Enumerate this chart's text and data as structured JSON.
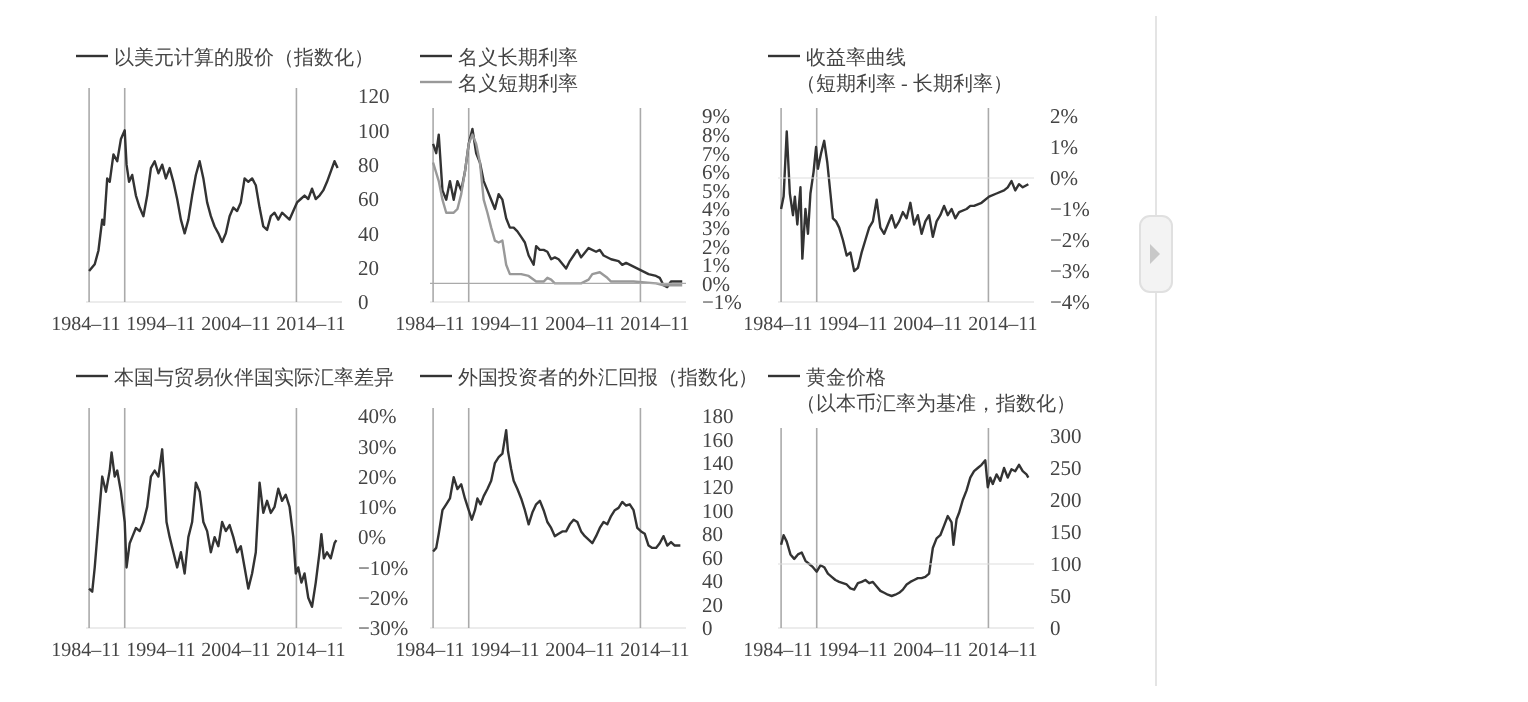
{
  "chart_data": [
    {
      "type": "line",
      "legend": "top",
      "xlim": [
        "1984-11",
        "2019-01"
      ],
      "xticks": [
        {
          "value": "1984-11",
          "label": "1984–11"
        },
        {
          "value": "1994-11",
          "label": "1994–11"
        },
        {
          "value": "2004-11",
          "label": "2004–11"
        },
        {
          "value": "2014-11",
          "label": "2014–11"
        }
      ],
      "ylim": [
        0,
        120
      ],
      "yticks": [
        0,
        20,
        40,
        60,
        80,
        100,
        120
      ],
      "ref_lines": [
        {
          "axis": "x",
          "value": "1985-04",
          "color": "#aaaaaa"
        },
        {
          "axis": "x",
          "value": "1990-01",
          "color": "#aaaaaa"
        },
        {
          "axis": "x",
          "value": "2012-12",
          "color": "#aaaaaa"
        }
      ],
      "series": [
        {
          "name": "以美元计算的股价（指数化）",
          "color": "#333333",
          "x": [
            "1985-04",
            "1986-01",
            "1986-07",
            "1987-01",
            "1987-04",
            "1987-09",
            "1988-01",
            "1988-07",
            "1989-01",
            "1989-07",
            "1990-01",
            "1990-04",
            "1990-08",
            "1991-01",
            "1991-07",
            "1992-01",
            "1992-07",
            "1993-01",
            "1993-07",
            "1994-01",
            "1994-07",
            "1995-01",
            "1995-07",
            "1996-01",
            "1996-07",
            "1997-01",
            "1997-07",
            "1998-01",
            "1998-07",
            "1999-01",
            "1999-07",
            "2000-01",
            "2000-07",
            "2001-01",
            "2001-07",
            "2002-01",
            "2002-07",
            "2003-01",
            "2003-07",
            "2004-01",
            "2004-07",
            "2005-01",
            "2005-07",
            "2006-01",
            "2006-07",
            "2007-01",
            "2007-07",
            "2008-01",
            "2008-07",
            "2009-01",
            "2009-07",
            "2010-01",
            "2010-07",
            "2011-01",
            "2011-07",
            "2012-01",
            "2012-07",
            "2013-01",
            "2013-07",
            "2014-01",
            "2014-07",
            "2015-01",
            "2015-07",
            "2016-01",
            "2016-07",
            "2017-01",
            "2017-07",
            "2018-01",
            "2018-06"
          ],
          "values": [
            18,
            22,
            30,
            48,
            45,
            72,
            70,
            86,
            82,
            95,
            100,
            80,
            70,
            74,
            62,
            55,
            50,
            62,
            78,
            82,
            75,
            80,
            72,
            78,
            70,
            60,
            48,
            40,
            48,
            62,
            74,
            82,
            72,
            58,
            50,
            44,
            40,
            35,
            40,
            50,
            55,
            53,
            58,
            72,
            70,
            72,
            68,
            55,
            44,
            42,
            50,
            52,
            48,
            52,
            50,
            48,
            53,
            58,
            60,
            62,
            60,
            66,
            60,
            62,
            65,
            70,
            76,
            82,
            78
          ]
        }
      ]
    },
    {
      "type": "line",
      "legend": "top",
      "xlim": [
        "1984-11",
        "2019-01"
      ],
      "xticks": [
        {
          "value": "1984-11",
          "label": "1984–11"
        },
        {
          "value": "1994-11",
          "label": "1994–11"
        },
        {
          "value": "2004-11",
          "label": "2004–11"
        },
        {
          "value": "2014-11",
          "label": "2014–11"
        }
      ],
      "ylim": [
        -1,
        9
      ],
      "yticks": [
        {
          "value": -1,
          "label": "−1%"
        },
        {
          "value": 0,
          "label": "0%"
        },
        {
          "value": 1,
          "label": "1%"
        },
        {
          "value": 2,
          "label": "2%"
        },
        {
          "value": 3,
          "label": "3%"
        },
        {
          "value": 4,
          "label": "4%"
        },
        {
          "value": 5,
          "label": "5%"
        },
        {
          "value": 6,
          "label": "6%"
        },
        {
          "value": 7,
          "label": "7%"
        },
        {
          "value": 8,
          "label": "8%"
        },
        {
          "value": 9,
          "label": "9%"
        }
      ],
      "ref_lines": [
        {
          "axis": "x",
          "value": "1985-04",
          "color": "#aaaaaa"
        },
        {
          "axis": "x",
          "value": "1990-01",
          "color": "#aaaaaa"
        },
        {
          "axis": "x",
          "value": "2012-12",
          "color": "#aaaaaa"
        },
        {
          "axis": "y",
          "value": 0,
          "color": "#aaaaaa"
        }
      ],
      "series": [
        {
          "name": "名义长期利率",
          "color": "#333333",
          "x": [
            "1985-04",
            "1985-09",
            "1986-01",
            "1986-07",
            "1987-01",
            "1987-07",
            "1988-01",
            "1988-07",
            "1989-01",
            "1989-07",
            "1990-01",
            "1990-07",
            "1991-01",
            "1991-07",
            "1992-01",
            "1992-07",
            "1993-01",
            "1993-07",
            "1994-01",
            "1994-07",
            "1995-01",
            "1995-07",
            "1996-01",
            "1996-07",
            "1997-01",
            "1997-07",
            "1998-01",
            "1998-09",
            "1999-01",
            "1999-07",
            "2000-01",
            "2000-07",
            "2001-01",
            "2001-07",
            "2002-01",
            "2003-01",
            "2003-07",
            "2004-01",
            "2004-07",
            "2005-01",
            "2006-01",
            "2007-01",
            "2007-07",
            "2008-01",
            "2009-01",
            "2010-01",
            "2010-07",
            "2011-01",
            "2012-01",
            "2013-01",
            "2014-01",
            "2015-01",
            "2015-07",
            "2016-01",
            "2016-07",
            "2017-01",
            "2018-01",
            "2018-07"
          ],
          "values": [
            7.5,
            7.0,
            8.0,
            5.0,
            4.5,
            5.5,
            4.5,
            5.5,
            5.0,
            6.0,
            7.5,
            8.3,
            7.0,
            6.5,
            5.5,
            5.0,
            4.5,
            4.0,
            4.8,
            4.5,
            3.5,
            3.0,
            3.0,
            2.8,
            2.5,
            2.2,
            1.5,
            1.0,
            2.0,
            1.8,
            1.8,
            1.7,
            1.3,
            1.4,
            1.3,
            0.8,
            1.2,
            1.5,
            1.8,
            1.4,
            1.9,
            1.7,
            1.8,
            1.5,
            1.3,
            1.2,
            1.0,
            1.1,
            0.9,
            0.7,
            0.5,
            0.4,
            0.3,
            -0.1,
            -0.2,
            0.1,
            0.1,
            0.1
          ]
        },
        {
          "name": "名义短期利率",
          "color": "#999999",
          "x": [
            "1985-04",
            "1986-01",
            "1986-07",
            "1987-01",
            "1988-01",
            "1988-07",
            "1989-01",
            "1989-07",
            "1990-01",
            "1990-07",
            "1991-01",
            "1991-07",
            "1992-01",
            "1992-07",
            "1993-01",
            "1993-07",
            "1994-01",
            "1994-07",
            "1995-01",
            "1995-07",
            "1996-01",
            "1997-01",
            "1998-01",
            "1999-01",
            "2000-01",
            "2000-07",
            "2001-01",
            "2001-07",
            "2005-01",
            "2006-01",
            "2006-07",
            "2007-07",
            "2008-07",
            "2009-01",
            "2012-01",
            "2015-01",
            "2016-01",
            "2018-07"
          ],
          "values": [
            6.5,
            5.5,
            4.5,
            3.8,
            3.8,
            4.0,
            4.8,
            6.0,
            7.5,
            8.0,
            7.5,
            6.5,
            4.5,
            3.8,
            3.0,
            2.3,
            2.2,
            2.3,
            1.0,
            0.5,
            0.5,
            0.5,
            0.4,
            0.1,
            0.1,
            0.3,
            0.2,
            0,
            0,
            0.2,
            0.5,
            0.6,
            0.3,
            0.1,
            0.1,
            0,
            -0.1,
            -0.1
          ]
        }
      ]
    },
    {
      "type": "line",
      "legend": "top",
      "xlim": [
        "1984-11",
        "2019-01"
      ],
      "xticks": [
        {
          "value": "1984-11",
          "label": "1984–11"
        },
        {
          "value": "1994-11",
          "label": "1994–11"
        },
        {
          "value": "2004-11",
          "label": "2004–11"
        },
        {
          "value": "2014-11",
          "label": "2014–11"
        }
      ],
      "ylim": [
        -4,
        2
      ],
      "yticks": [
        {
          "value": -4,
          "label": "−4%"
        },
        {
          "value": -3,
          "label": "−3%"
        },
        {
          "value": -2,
          "label": "−2%"
        },
        {
          "value": -1,
          "label": "−1%"
        },
        {
          "value": 0,
          "label": "0%"
        },
        {
          "value": 1,
          "label": "1%"
        },
        {
          "value": 2,
          "label": "2%"
        }
      ],
      "ref_lines": [
        {
          "axis": "x",
          "value": "1985-04",
          "color": "#aaaaaa"
        },
        {
          "axis": "x",
          "value": "1990-01",
          "color": "#aaaaaa"
        },
        {
          "axis": "x",
          "value": "2012-12",
          "color": "#aaaaaa"
        },
        {
          "axis": "y",
          "value": 0,
          "color": "#dddddd"
        }
      ],
      "series": [
        {
          "name": "收益率曲线（短期利率 - 长期利率）",
          "color": "#333333",
          "x": [
            "1985-04",
            "1985-08",
            "1986-01",
            "1986-06",
            "1986-11",
            "1987-02",
            "1987-06",
            "1987-11",
            "1988-02",
            "1988-07",
            "1988-11",
            "1989-03",
            "1989-08",
            "1989-12",
            "1990-03",
            "1990-08",
            "1991-01",
            "1991-06",
            "1991-11",
            "1992-03",
            "1992-08",
            "1993-01",
            "1993-07",
            "1994-01",
            "1994-07",
            "1995-01",
            "1995-07",
            "1996-01",
            "1996-07",
            "1997-01",
            "1997-07",
            "1998-01",
            "1998-07",
            "1999-01",
            "1999-07",
            "2000-01",
            "2000-07",
            "2001-01",
            "2001-07",
            "2002-01",
            "2002-07",
            "2003-01",
            "2003-07",
            "2004-01",
            "2004-07",
            "2005-01",
            "2005-07",
            "2006-01",
            "2006-07",
            "2007-01",
            "2007-07",
            "2008-01",
            "2008-07",
            "2009-01",
            "2010-01",
            "2010-07",
            "2011-01",
            "2012-01",
            "2013-01",
            "2014-01",
            "2015-01",
            "2015-07",
            "2016-01",
            "2016-07",
            "2017-01",
            "2017-07",
            "2018-04"
          ],
          "values": [
            -1.0,
            -0.6,
            1.5,
            -0.5,
            -1.2,
            -0.6,
            -1.5,
            -0.3,
            -2.6,
            -1.0,
            -1.8,
            -0.5,
            0.2,
            1.0,
            0.3,
            0.8,
            1.2,
            0.5,
            -0.5,
            -1.3,
            -1.4,
            -1.6,
            -2.0,
            -2.5,
            -2.4,
            -3.0,
            -2.9,
            -2.4,
            -2.0,
            -1.6,
            -1.4,
            -0.7,
            -1.6,
            -1.8,
            -1.5,
            -1.2,
            -1.6,
            -1.4,
            -1.1,
            -1.3,
            -0.8,
            -1.5,
            -1.2,
            -1.8,
            -1.4,
            -1.2,
            -1.9,
            -1.4,
            -1.2,
            -0.9,
            -1.2,
            -1.0,
            -1.3,
            -1.1,
            -1.0,
            -0.9,
            -0.9,
            -0.8,
            -0.6,
            -0.5,
            -0.4,
            -0.3,
            -0.1,
            -0.4,
            -0.2,
            -0.3,
            -0.2
          ]
        }
      ]
    },
    {
      "type": "line",
      "legend": "top",
      "xlim": [
        "1984-11",
        "2019-01"
      ],
      "xticks": [
        {
          "value": "1984-11",
          "label": "1984–11"
        },
        {
          "value": "1994-11",
          "label": "1994–11"
        },
        {
          "value": "2004-11",
          "label": "2004–11"
        },
        {
          "value": "2014-11",
          "label": "2014–11"
        }
      ],
      "ylim": [
        -30,
        40
      ],
      "yticks": [
        {
          "value": -30,
          "label": "−30%"
        },
        {
          "value": -20,
          "label": "−20%"
        },
        {
          "value": -10,
          "label": "−10%"
        },
        {
          "value": 0,
          "label": "0%"
        },
        {
          "value": 10,
          "label": "10%"
        },
        {
          "value": 20,
          "label": "20%"
        },
        {
          "value": 30,
          "label": "30%"
        },
        {
          "value": 40,
          "label": "40%"
        }
      ],
      "ref_lines": [
        {
          "axis": "x",
          "value": "1985-04",
          "color": "#aaaaaa"
        },
        {
          "axis": "x",
          "value": "1990-01",
          "color": "#aaaaaa"
        },
        {
          "axis": "x",
          "value": "2012-12",
          "color": "#aaaaaa"
        }
      ],
      "series": [
        {
          "name": "本国与贸易伙伴国实际汇率差异",
          "color": "#333333",
          "x": [
            "1985-04",
            "1985-09",
            "1986-01",
            "1986-07",
            "1987-01",
            "1987-07",
            "1988-01",
            "1988-04",
            "1988-09",
            "1989-01",
            "1989-07",
            "1990-01",
            "1990-04",
            "1990-09",
            "1991-01",
            "1991-07",
            "1992-01",
            "1992-07",
            "1993-01",
            "1993-07",
            "1994-01",
            "1994-07",
            "1995-01",
            "1995-04",
            "1995-08",
            "1996-01",
            "1996-07",
            "1997-01",
            "1997-07",
            "1998-01",
            "1998-07",
            "1999-01",
            "1999-07",
            "2000-01",
            "2000-07",
            "2001-01",
            "2001-07",
            "2002-01",
            "2002-07",
            "2003-01",
            "2003-07",
            "2004-01",
            "2004-07",
            "2005-01",
            "2005-07",
            "2006-01",
            "2006-07",
            "2007-01",
            "2007-07",
            "2008-01",
            "2008-07",
            "2009-01",
            "2009-07",
            "2010-01",
            "2010-07",
            "2011-01",
            "2011-07",
            "2012-01",
            "2012-07",
            "2012-11",
            "2013-03",
            "2013-08",
            "2014-01",
            "2014-07",
            "2015-01",
            "2015-07",
            "2016-01",
            "2016-04",
            "2016-08",
            "2017-01",
            "2017-07",
            "2018-01",
            "2018-04"
          ],
          "values": [
            -17,
            -18,
            -10,
            5,
            20,
            15,
            22,
            28,
            20,
            22,
            15,
            5,
            -10,
            -2,
            0,
            3,
            2,
            5,
            10,
            20,
            22,
            20,
            29,
            20,
            5,
            0,
            -5,
            -10,
            -5,
            -12,
            0,
            5,
            18,
            15,
            5,
            2,
            -5,
            0,
            -3,
            5,
            2,
            4,
            0,
            -5,
            -3,
            -10,
            -17,
            -12,
            -5,
            18,
            8,
            12,
            8,
            10,
            16,
            12,
            14,
            10,
            0,
            -12,
            -10,
            -15,
            -12,
            -20,
            -23,
            -15,
            -5,
            1,
            -7,
            -5,
            -7,
            -2,
            -1
          ]
        }
      ]
    },
    {
      "type": "line",
      "legend": "top",
      "xlim": [
        "1984-11",
        "2019-01"
      ],
      "xticks": [
        {
          "value": "1984-11",
          "label": "1984–11"
        },
        {
          "value": "1994-11",
          "label": "1994–11"
        },
        {
          "value": "2004-11",
          "label": "2004–11"
        },
        {
          "value": "2014-11",
          "label": "2014–11"
        }
      ],
      "ylim": [
        0,
        180
      ],
      "yticks": [
        0,
        20,
        40,
        60,
        80,
        100,
        120,
        140,
        160,
        180
      ],
      "ref_lines": [
        {
          "axis": "x",
          "value": "1985-04",
          "color": "#aaaaaa"
        },
        {
          "axis": "x",
          "value": "1990-01",
          "color": "#aaaaaa"
        },
        {
          "axis": "x",
          "value": "2012-12",
          "color": "#aaaaaa"
        }
      ],
      "series": [
        {
          "name": "外国投资者的外汇回报（指数化）",
          "color": "#333333",
          "x": [
            "1985-04",
            "1985-09",
            "1986-01",
            "1986-07",
            "1987-01",
            "1987-07",
            "1988-01",
            "1988-07",
            "1989-01",
            "1989-07",
            "1990-01",
            "1990-06",
            "1990-11",
            "1991-03",
            "1991-08",
            "1992-01",
            "1992-07",
            "1993-01",
            "1993-07",
            "1994-01",
            "1994-07",
            "1995-01",
            "1995-04",
            "1995-09",
            "1996-01",
            "1996-07",
            "1997-01",
            "1997-07",
            "1998-01",
            "1998-07",
            "1999-01",
            "1999-07",
            "2000-01",
            "2000-07",
            "2001-01",
            "2001-07",
            "2002-01",
            "2002-07",
            "2003-01",
            "2003-07",
            "2004-01",
            "2004-07",
            "2005-01",
            "2005-07",
            "2006-01",
            "2006-07",
            "2007-01",
            "2007-07",
            "2008-01",
            "2008-07",
            "2009-01",
            "2009-07",
            "2010-01",
            "2010-07",
            "2011-01",
            "2011-07",
            "2012-01",
            "2012-07",
            "2013-01",
            "2013-07",
            "2014-01",
            "2014-07",
            "2015-01",
            "2015-07",
            "2016-01",
            "2016-07",
            "2017-01",
            "2017-07",
            "2018-04"
          ],
          "values": [
            65,
            68,
            80,
            100,
            105,
            110,
            128,
            118,
            122,
            110,
            100,
            92,
            100,
            110,
            105,
            112,
            118,
            125,
            140,
            145,
            148,
            168,
            150,
            135,
            125,
            118,
            110,
            100,
            88,
            98,
            105,
            108,
            100,
            90,
            85,
            78,
            80,
            82,
            82,
            88,
            92,
            90,
            82,
            78,
            75,
            72,
            78,
            85,
            90,
            88,
            95,
            100,
            102,
            107,
            104,
            105,
            100,
            85,
            82,
            80,
            70,
            68,
            68,
            72,
            78,
            70,
            73,
            70,
            70
          ]
        }
      ]
    },
    {
      "type": "line",
      "legend": "top",
      "xlim": [
        "1984-11",
        "2019-01"
      ],
      "xticks": [
        {
          "value": "1984-11",
          "label": "1984–11"
        },
        {
          "value": "1994-11",
          "label": "1994–11"
        },
        {
          "value": "2004-11",
          "label": "2004–11"
        },
        {
          "value": "2014-11",
          "label": "2014–11"
        }
      ],
      "ylim": [
        0,
        300
      ],
      "yticks": [
        0,
        50,
        100,
        150,
        200,
        250,
        300
      ],
      "ref_lines": [
        {
          "axis": "x",
          "value": "1985-04",
          "color": "#aaaaaa"
        },
        {
          "axis": "x",
          "value": "1990-01",
          "color": "#aaaaaa"
        },
        {
          "axis": "x",
          "value": "2012-12",
          "color": "#aaaaaa"
        },
        {
          "axis": "y",
          "value": 100,
          "color": "#dddddd"
        }
      ],
      "series": [
        {
          "name": "黄金价格（以本币汇率为基准，指数化）",
          "color": "#333333",
          "x": [
            "1985-04",
            "1985-08",
            "1986-01",
            "1986-07",
            "1987-01",
            "1987-07",
            "1988-01",
            "1988-07",
            "1989-01",
            "1989-07",
            "1990-01",
            "1990-07",
            "1991-01",
            "1991-07",
            "1992-01",
            "1992-07",
            "1993-01",
            "1993-07",
            "1994-01",
            "1994-07",
            "1995-01",
            "1995-07",
            "1996-01",
            "1996-07",
            "1997-01",
            "1997-07",
            "1998-01",
            "1998-07",
            "1999-01",
            "1999-07",
            "2000-01",
            "2000-07",
            "2001-01",
            "2001-07",
            "2002-01",
            "2002-07",
            "2003-01",
            "2003-07",
            "2004-01",
            "2004-07",
            "2005-01",
            "2005-07",
            "2006-01",
            "2006-07",
            "2007-01",
            "2007-07",
            "2008-01",
            "2008-04",
            "2008-09",
            "2009-01",
            "2009-07",
            "2010-01",
            "2010-07",
            "2011-01",
            "2011-07",
            "2012-01",
            "2012-07",
            "2012-11",
            "2013-03",
            "2013-07",
            "2014-01",
            "2014-07",
            "2015-01",
            "2015-07",
            "2016-01",
            "2016-07",
            "2017-01",
            "2017-07",
            "2018-01",
            "2018-04"
          ],
          "values": [
            130,
            145,
            135,
            115,
            108,
            115,
            118,
            105,
            100,
            95,
            88,
            98,
            95,
            85,
            80,
            75,
            72,
            70,
            68,
            62,
            60,
            70,
            72,
            75,
            70,
            72,
            65,
            58,
            55,
            52,
            50,
            52,
            55,
            60,
            68,
            72,
            75,
            78,
            78,
            80,
            85,
            125,
            140,
            145,
            160,
            175,
            165,
            130,
            170,
            180,
            200,
            215,
            235,
            245,
            250,
            255,
            262,
            220,
            235,
            225,
            240,
            230,
            250,
            235,
            248,
            245,
            255,
            245,
            240,
            235
          ]
        }
      ]
    }
  ]
}
